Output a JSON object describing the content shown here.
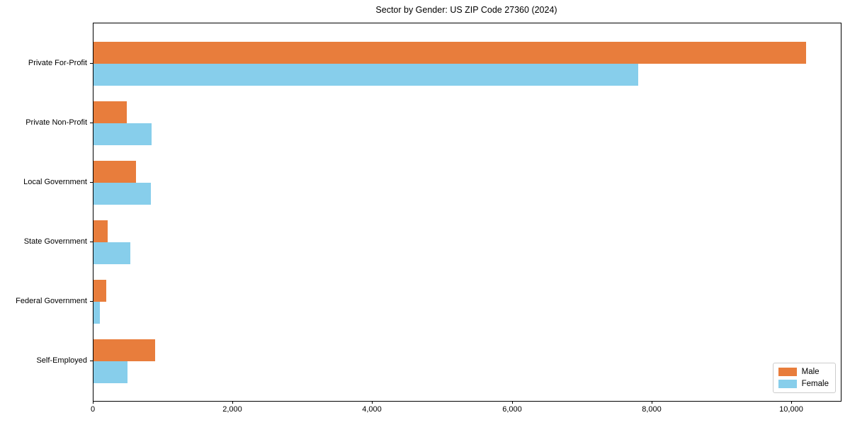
{
  "chart_data": {
    "type": "bar",
    "orientation": "horizontal",
    "title": "Sector by Gender: US ZIP Code 27360 (2024)",
    "categories": [
      "Private For-Profit",
      "Private Non-Profit",
      "Local Government",
      "State Government",
      "Federal Government",
      "Self-Employed"
    ],
    "series": [
      {
        "name": "Male",
        "color": "#e87d3c",
        "values": [
          10200,
          480,
          610,
          200,
          185,
          880
        ]
      },
      {
        "name": "Female",
        "color": "#87ceeb",
        "values": [
          7800,
          830,
          820,
          530,
          90,
          490
        ]
      }
    ],
    "xlim": [
      0,
      10700
    ],
    "xticks": [
      0,
      2000,
      4000,
      6000,
      8000,
      10000
    ],
    "xtick_labels": [
      "0",
      "2,000",
      "4,000",
      "6,000",
      "8,000",
      "10,000"
    ],
    "xlabel": "",
    "ylabel": "",
    "grid": false,
    "legend_position": "lower right"
  },
  "colors": {
    "background": "#ffffff",
    "spine": "#000000",
    "text": "#000000",
    "legend_border": "#cccccc"
  }
}
